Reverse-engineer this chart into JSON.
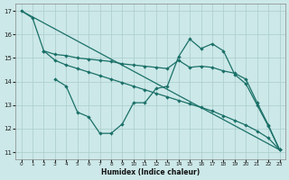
{
  "bg_color": "#cce8e8",
  "grid_color": "#aacccc",
  "line_color": "#1a7068",
  "xlabel": "Humidex (Indice chaleur)",
  "xlim": [
    0,
    23
  ],
  "ylim": [
    11,
    17
  ],
  "yticks": [
    11,
    12,
    13,
    14,
    15,
    16,
    17
  ],
  "xticks": [
    0,
    1,
    2,
    3,
    4,
    5,
    6,
    7,
    8,
    9,
    10,
    11,
    12,
    13,
    14,
    15,
    16,
    17,
    18,
    19,
    20,
    21,
    22,
    23
  ],
  "line1_x": [
    0,
    1,
    2,
    3,
    4,
    5,
    6,
    7,
    8,
    9,
    10,
    11,
    12,
    13,
    14,
    15,
    16,
    17,
    18,
    19,
    20,
    21,
    22,
    23
  ],
  "line1_y": [
    17.0,
    16.7,
    15.3,
    14.9,
    14.7,
    14.55,
    14.4,
    14.25,
    14.1,
    13.95,
    13.8,
    13.65,
    13.5,
    13.35,
    13.2,
    13.05,
    12.9,
    12.75,
    12.55,
    12.35,
    12.15,
    11.9,
    11.6,
    11.1
  ],
  "line2_x": [
    0,
    23
  ],
  "line2_y": [
    17.0,
    11.1
  ],
  "line3_x": [
    3,
    4,
    5,
    6,
    7,
    8,
    9,
    10,
    11,
    12,
    13,
    14,
    15,
    16,
    17,
    18,
    19,
    20,
    21,
    22,
    23
  ],
  "line3_y": [
    14.1,
    13.8,
    12.7,
    12.5,
    11.8,
    11.8,
    12.2,
    13.1,
    13.1,
    13.7,
    13.8,
    15.05,
    15.8,
    15.4,
    15.6,
    15.3,
    14.3,
    13.9,
    13.0,
    12.1,
    11.1
  ],
  "line4_x": [
    2,
    3,
    4,
    5,
    6,
    7,
    8,
    9,
    10,
    11,
    12,
    13,
    14,
    15,
    16,
    17,
    18,
    19,
    20,
    21,
    22,
    23
  ],
  "line4_y": [
    15.3,
    15.15,
    15.1,
    15.0,
    14.95,
    14.9,
    14.85,
    14.75,
    14.7,
    14.65,
    14.6,
    14.55,
    14.9,
    14.6,
    14.65,
    14.6,
    14.45,
    14.35,
    14.1,
    13.1,
    12.15,
    11.1
  ]
}
